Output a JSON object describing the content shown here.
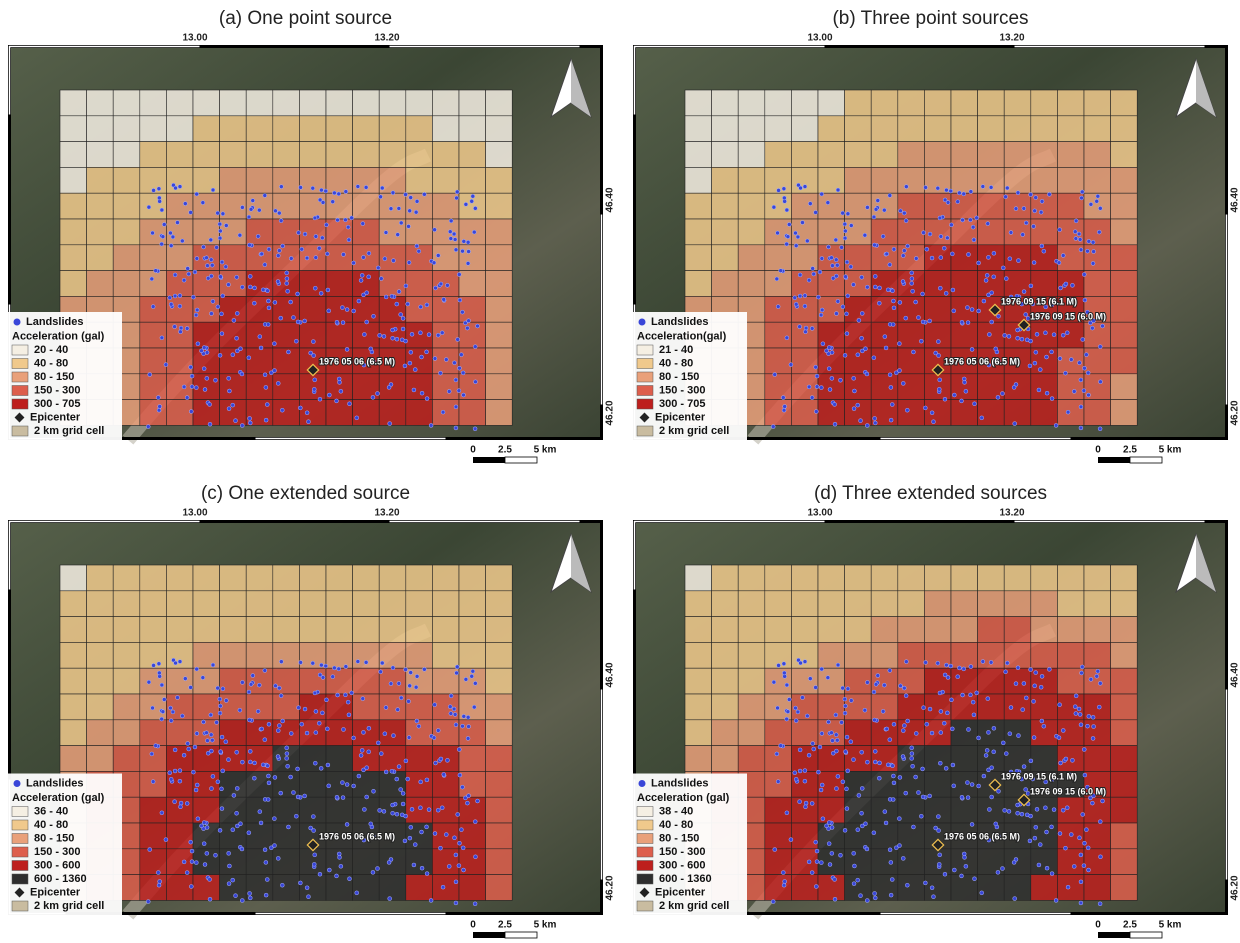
{
  "panels": [
    {
      "title": "(a) One point source",
      "lon_labels": [
        "13.00",
        "13.20"
      ],
      "lat_labels": [
        "46.40",
        "46.20"
      ],
      "legend": {
        "landslides": "Landslides",
        "heading": "Acceleration (gal)",
        "classes": [
          {
            "label": "20 - 40",
            "color": "#f5efe3"
          },
          {
            "label": "40 - 80",
            "color": "#f0c98c"
          },
          {
            "label": "80 - 150",
            "color": "#e9a07a"
          },
          {
            "label": "150 - 300",
            "color": "#dd5e4c"
          },
          {
            "label": "300 - 705",
            "color": "#bd1f1d"
          }
        ],
        "epicenter": "Epicenter",
        "grid": "2 km grid cell"
      },
      "epicenters": [
        "1976 05 06 (6.5 M)"
      ],
      "scale": [
        "0",
        "2.5",
        "5 km"
      ]
    },
    {
      "title": "(b) Three point sources",
      "lon_labels": [
        "13.00",
        "13.20"
      ],
      "lat_labels": [
        "46.40",
        "46.20"
      ],
      "legend": {
        "landslides": "Landslides",
        "heading": "Acceleration(gal)",
        "classes": [
          {
            "label": "21 - 40",
            "color": "#f5efe3"
          },
          {
            "label": "40 - 80",
            "color": "#f0c98c"
          },
          {
            "label": "80 - 150",
            "color": "#e9a07a"
          },
          {
            "label": "150 - 300",
            "color": "#dd5e4c"
          },
          {
            "label": "300 - 705",
            "color": "#bd1f1d"
          }
        ],
        "epicenter": "Epicenter",
        "grid": "2 km grid cell"
      },
      "epicenters": [
        "1976 05 06 (6.5 M)",
        "1976 09 15 (6.1 M)",
        "1976 09 15 (6.0 M)"
      ],
      "scale": [
        "0",
        "2.5",
        "5 km"
      ]
    },
    {
      "title": "(c) One extended source",
      "lon_labels": [
        "13.00",
        "13.20"
      ],
      "lat_labels": [
        "46.40",
        "46.20"
      ],
      "legend": {
        "landslides": "Landslides",
        "heading": "Acceleration (gal)",
        "classes": [
          {
            "label": "36 - 40",
            "color": "#f5efe3"
          },
          {
            "label": "40 - 80",
            "color": "#f0c98c"
          },
          {
            "label": "80 - 150",
            "color": "#e9a07a"
          },
          {
            "label": "150 - 300",
            "color": "#dd5e4c"
          },
          {
            "label": "300 - 600",
            "color": "#bd1f1d"
          },
          {
            "label": "600 - 1360",
            "color": "#2e2e2e"
          }
        ],
        "epicenter": "Epicenter",
        "grid": "2 km grid cell"
      },
      "epicenters": [
        "1976 05 06 (6.5 M)"
      ],
      "scale": [
        "0",
        "2.5",
        "5 km"
      ]
    },
    {
      "title": "(d) Three extended sources",
      "lon_labels": [
        "13.00",
        "13.20"
      ],
      "lat_labels": [
        "46.40",
        "46.20"
      ],
      "legend": {
        "landslides": "Landslides",
        "heading": "Acceleration (gal)",
        "classes": [
          {
            "label": "38 - 40",
            "color": "#f5efe3"
          },
          {
            "label": "40 - 80",
            "color": "#f0c98c"
          },
          {
            "label": "80 - 150",
            "color": "#e9a07a"
          },
          {
            "label": "150 - 300",
            "color": "#dd5e4c"
          },
          {
            "label": "300 - 600",
            "color": "#bd1f1d"
          },
          {
            "label": "600 - 1360",
            "color": "#2e2e2e"
          }
        ],
        "epicenter": "Epicenter",
        "grid": "2 km grid cell"
      },
      "epicenters": [
        "1976 05 06 (6.5 M)",
        "1976 09 15 (6.1 M)",
        "1976 09 15 (6.0 M)"
      ],
      "scale": [
        "0",
        "2.5",
        "5 km"
      ]
    }
  ]
}
